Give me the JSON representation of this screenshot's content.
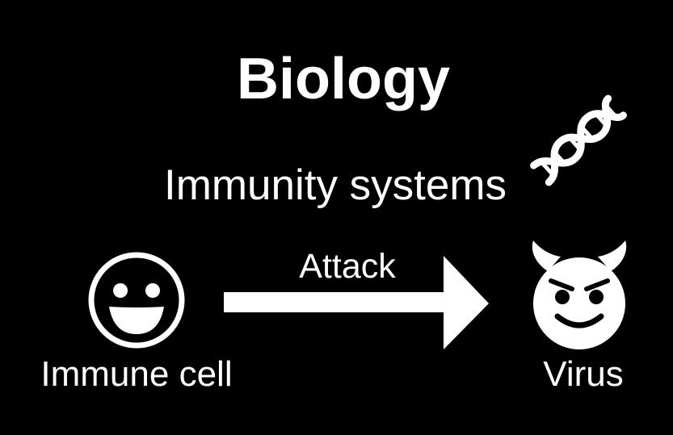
{
  "title": "Biology",
  "subtitle": "Immunity systems",
  "immune_cell": {
    "label": "Immune cell",
    "icon": "smiley-face-icon"
  },
  "virus": {
    "label": "Virus",
    "icon": "smiling-devil-icon"
  },
  "relation": {
    "label": "Attack",
    "icon": "right-arrow-icon"
  },
  "decoration": {
    "icon": "dna-icon"
  },
  "colors": {
    "background": "#000000",
    "foreground": "#ffffff"
  }
}
